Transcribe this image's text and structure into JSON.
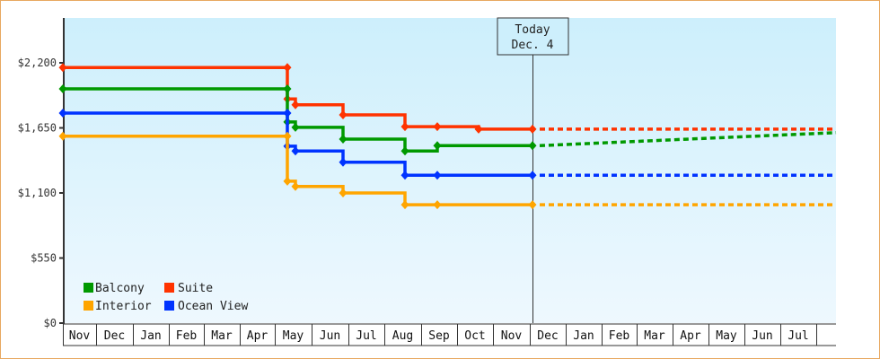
{
  "chart_data": {
    "type": "line",
    "subtype": "step",
    "title": "",
    "xlabel": "",
    "ylabel": "",
    "ylim": [
      0,
      2200
    ],
    "yticks": [
      0,
      550,
      1100,
      1650,
      2200
    ],
    "ytick_labels": [
      "$0",
      "$550",
      "$1,100",
      "$1,650",
      "$2,200"
    ],
    "grid": false,
    "months": [
      "Nov",
      "Dec",
      "Jan",
      "Feb",
      "Mar",
      "Apr",
      "May",
      "Jun",
      "Jul",
      "Aug",
      "Sep",
      "Oct",
      "Nov",
      "Dec",
      "Jan",
      "Feb",
      "Mar",
      "Apr",
      "May",
      "Jun",
      "Jul"
    ],
    "today_marker": {
      "line1": "Today",
      "line2": "Dec. 4"
    },
    "legend": {
      "position": "bottom-left",
      "entries": [
        {
          "name": "Balcony",
          "color": "#009900"
        },
        {
          "name": "Suite",
          "color": "#ff3300"
        },
        {
          "name": "Interior",
          "color": "#ffa500"
        },
        {
          "name": "Ocean View",
          "color": "#0033ff"
        }
      ]
    },
    "series": [
      {
        "name": "Suite",
        "color": "#ff3300",
        "points": [
          {
            "x": "Nov (start)",
            "y": 2160
          },
          {
            "x": "late Apr",
            "y": 2160
          },
          {
            "x": "late Apr",
            "y": 1895
          },
          {
            "x": "early May",
            "y": 1845
          },
          {
            "x": "mid Jun",
            "y": 1760
          },
          {
            "x": "early Aug",
            "y": 1660
          },
          {
            "x": "mid Sep",
            "y": 1660
          },
          {
            "x": "early Oct",
            "y": 1640
          },
          {
            "x": "Today (Dec 4)",
            "y": 1640
          }
        ],
        "projection": {
          "from": 1640,
          "to": 1640
        }
      },
      {
        "name": "Balcony",
        "color": "#009900",
        "points": [
          {
            "x": "Nov (start)",
            "y": 1980
          },
          {
            "x": "late Apr",
            "y": 1980
          },
          {
            "x": "late Apr",
            "y": 1700
          },
          {
            "x": "early May",
            "y": 1655
          },
          {
            "x": "mid Jun",
            "y": 1555
          },
          {
            "x": "early Aug",
            "y": 1455
          },
          {
            "x": "mid Sep",
            "y": 1500
          },
          {
            "x": "Today (Dec 4)",
            "y": 1500
          }
        ],
        "projection": {
          "from": 1500,
          "to": 1610
        }
      },
      {
        "name": "Ocean View",
        "color": "#0033ff",
        "points": [
          {
            "x": "Nov (start)",
            "y": 1775
          },
          {
            "x": "late Apr",
            "y": 1775
          },
          {
            "x": "late Apr",
            "y": 1495
          },
          {
            "x": "early May",
            "y": 1455
          },
          {
            "x": "mid Jun",
            "y": 1360
          },
          {
            "x": "early Aug",
            "y": 1250
          },
          {
            "x": "mid Sep",
            "y": 1250
          },
          {
            "x": "Today (Dec 4)",
            "y": 1250
          }
        ],
        "projection": {
          "from": 1250,
          "to": 1250
        }
      },
      {
        "name": "Interior",
        "color": "#ffa500",
        "points": [
          {
            "x": "Nov (start)",
            "y": 1580
          },
          {
            "x": "late Apr",
            "y": 1580
          },
          {
            "x": "late Apr",
            "y": 1200
          },
          {
            "x": "early May",
            "y": 1155
          },
          {
            "x": "mid Jun",
            "y": 1100
          },
          {
            "x": "early Aug",
            "y": 1000
          },
          {
            "x": "mid Sep",
            "y": 1000
          },
          {
            "x": "Today (Dec 4)",
            "y": 1000
          }
        ],
        "projection": {
          "from": 1000,
          "to": 1000
        }
      }
    ]
  }
}
